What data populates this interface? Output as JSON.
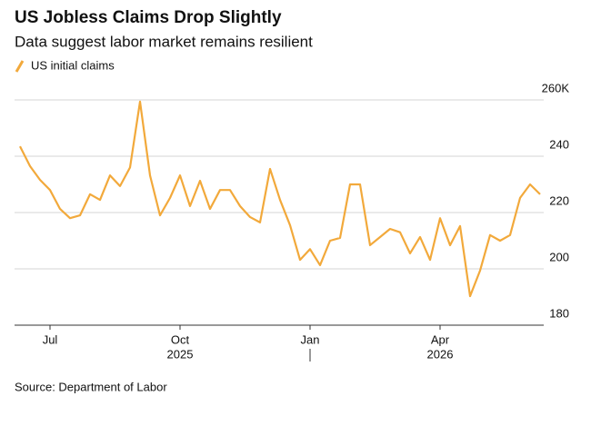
{
  "chart_data": {
    "type": "line",
    "title": "US Jobless Claims Drop Slightly",
    "subtitle": "Data suggest labor market remains resilient",
    "source": "Source: Department of Labor",
    "categories": [
      null,
      null,
      null,
      "Jul",
      null,
      null,
      null,
      null,
      null,
      null,
      null,
      null,
      null,
      null,
      null,
      null,
      "Oct",
      null,
      null,
      null,
      null,
      null,
      null,
      null,
      null,
      null,
      null,
      null,
      null,
      "Jan",
      null,
      null,
      null,
      null,
      null,
      null,
      null,
      null,
      null,
      null,
      null,
      null,
      "Apr",
      null,
      null,
      null,
      null,
      null,
      null,
      null,
      null,
      null,
      null
    ],
    "xgroups": [
      {
        "label": "2025"
      },
      {
        "label": "2026"
      }
    ],
    "series": [
      {
        "name": "US initial claims",
        "color": "#f2a93b",
        "values": [
          243.5,
          236.5,
          231.6,
          228,
          221.3,
          218,
          219,
          226.5,
          224.5,
          233.2,
          229.4,
          236,
          259.4,
          233.2,
          219,
          225.2,
          233.2,
          222.3,
          231.3,
          221.3,
          228,
          228,
          222.3,
          218.4,
          216.5,
          235.5,
          224.5,
          215.5,
          203.2,
          207,
          201.3,
          210,
          211,
          230,
          230,
          208.4,
          211.3,
          214.2,
          213,
          205.5,
          211.3,
          203.2,
          218,
          208.4,
          215.2,
          190.3,
          199.4,
          212,
          210,
          212,
          225.2,
          230,
          226.5
        ]
      }
    ],
    "ylim": [
      180,
      260
    ],
    "yticks": [
      180,
      200,
      220,
      240,
      {
        "value": 260,
        "label": "260K"
      }
    ],
    "grid": true
  }
}
